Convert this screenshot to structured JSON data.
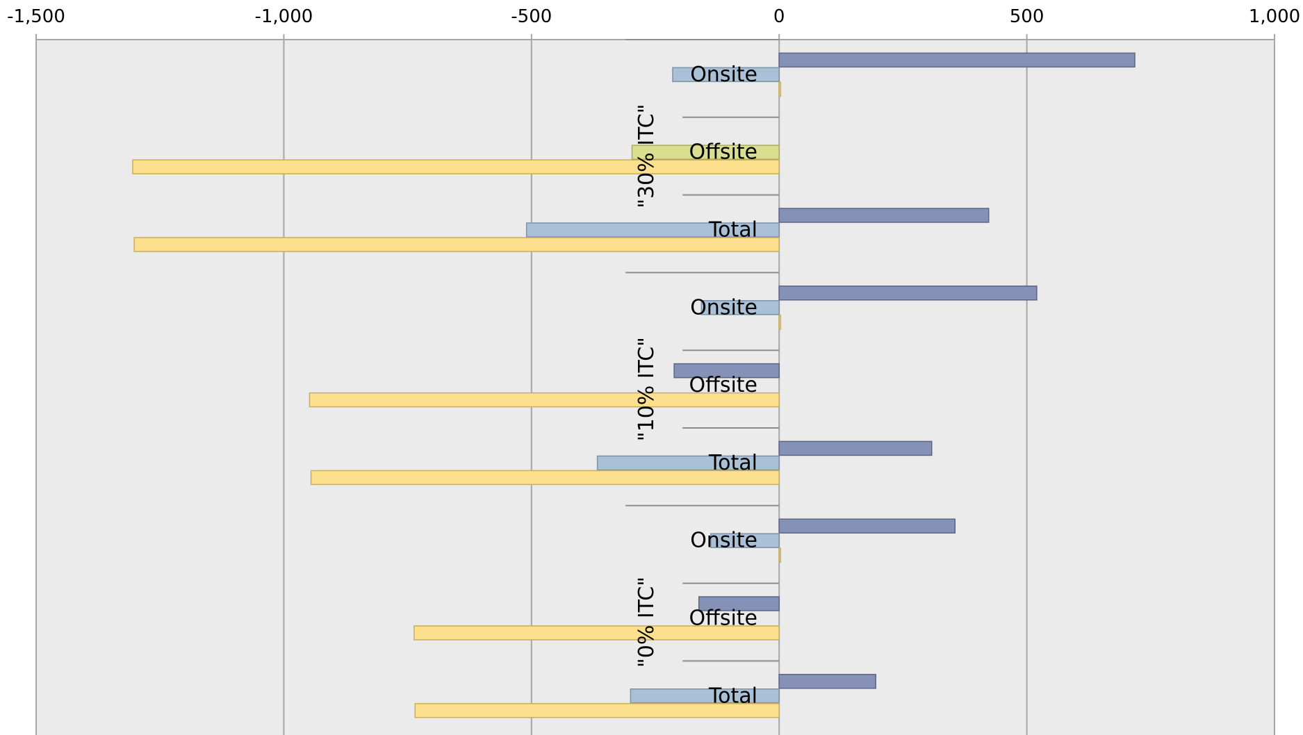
{
  "chart_data": {
    "type": "bar",
    "orientation": "horizontal",
    "xlim": [
      -1500,
      1000
    ],
    "x_ticks": [
      -1500,
      -1000,
      -500,
      0,
      500,
      1000
    ],
    "x_tick_labels": [
      "-1,500",
      "-1,000",
      "-500",
      "0",
      "500",
      "1,000"
    ],
    "grid": true,
    "legend": "none",
    "groups": [
      {
        "label": "\"30% ITC\"",
        "categories": [
          {
            "label": "Onsite",
            "values": [
              718,
              -215,
              3
            ]
          },
          {
            "label": "Offsite",
            "values": [
              0,
              -297,
              -1305
            ]
          },
          {
            "label": "Total",
            "values": [
              423,
              -510,
              -1302
            ]
          }
        ]
      },
      {
        "label": "\"10% ITC\"",
        "categories": [
          {
            "label": "Onsite",
            "values": [
              520,
              -157,
              3
            ]
          },
          {
            "label": "Offsite",
            "values": [
              -212,
              0,
              -948
            ]
          },
          {
            "label": "Total",
            "values": [
              308,
              -367,
              -945
            ]
          }
        ]
      },
      {
        "label": "\"0% ITC\"",
        "categories": [
          {
            "label": "Onsite",
            "values": [
              355,
              -138,
              2
            ]
          },
          {
            "label": "Offsite",
            "values": [
              -162,
              0,
              -737
            ]
          },
          {
            "label": "Total",
            "values": [
              195,
              -300,
              -735
            ]
          }
        ]
      }
    ],
    "series_colors": [
      {
        "fill": "#8591b6",
        "stroke": "#5b6585"
      },
      {
        "fill": "#a9c0d6",
        "stroke": "#7a91a8"
      },
      {
        "fill": "#fde08d",
        "stroke": "#c8ae5a"
      }
    ],
    "offsite_middle_color": {
      "fill": "#d9df8e",
      "stroke": "#a8ad5c"
    },
    "plot_background": "#ebebeb",
    "grid_color": "#a6a6a6"
  }
}
